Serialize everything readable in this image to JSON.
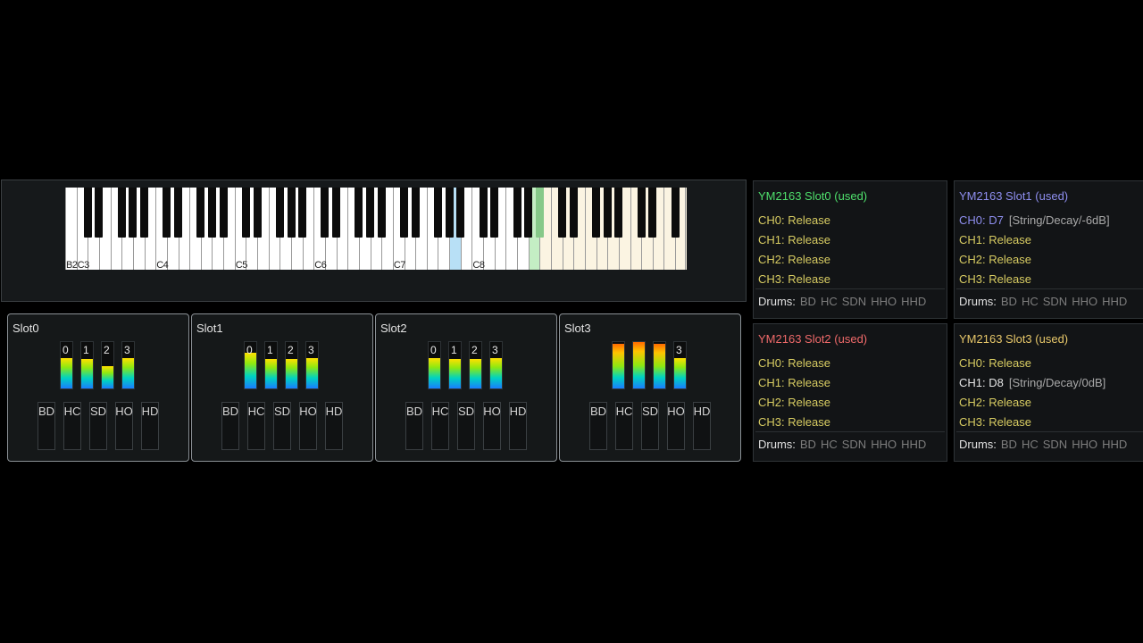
{
  "keyboard": {
    "octave_labels": [
      "B2",
      "C3",
      "C4",
      "C5",
      "C6",
      "C7",
      "C8"
    ]
  },
  "slots": [
    {
      "title": "Slot0",
      "meters": [
        {
          "label": "0",
          "level": 0.66,
          "hot": false
        },
        {
          "label": "1",
          "level": 0.64,
          "hot": false
        },
        {
          "label": "2",
          "level": 0.48,
          "hot": false
        },
        {
          "label": "3",
          "level": 0.66,
          "hot": false
        }
      ],
      "drums": [
        "BD",
        "HC",
        "SD",
        "HO",
        "HD"
      ]
    },
    {
      "title": "Slot1",
      "meters": [
        {
          "label": "0",
          "level": 0.76,
          "hot": false
        },
        {
          "label": "1",
          "level": 0.64,
          "hot": false
        },
        {
          "label": "2",
          "level": 0.64,
          "hot": false
        },
        {
          "label": "3",
          "level": 0.66,
          "hot": false
        }
      ],
      "drums": [
        "BD",
        "HC",
        "SD",
        "HO",
        "HD"
      ]
    },
    {
      "title": "Slot2",
      "meters": [
        {
          "label": "0",
          "level": 0.66,
          "hot": false
        },
        {
          "label": "1",
          "level": 0.64,
          "hot": false
        },
        {
          "label": "2",
          "level": 0.64,
          "hot": false
        },
        {
          "label": "3",
          "level": 0.66,
          "hot": false
        }
      ],
      "drums": [
        "BD",
        "HC",
        "SD",
        "HO",
        "HD"
      ]
    },
    {
      "title": "Slot3",
      "meters": [
        {
          "label": "",
          "level": 0.96,
          "hot": true
        },
        {
          "label": "",
          "level": 1.0,
          "hot": true
        },
        {
          "label": "",
          "level": 0.96,
          "hot": true
        },
        {
          "label": "3",
          "level": 0.66,
          "hot": false
        }
      ],
      "drums": [
        "BD",
        "HC",
        "SD",
        "HO",
        "HD"
      ]
    }
  ],
  "status_panels": [
    {
      "title": "YM2163 Slot0 (used)",
      "title_color": "#4fe06c",
      "channels": [
        {
          "note": "CH0: Release",
          "extra": "",
          "color": "#d8cc62"
        },
        {
          "note": "CH1: Release",
          "extra": "",
          "color": "#d8cc62"
        },
        {
          "note": "CH2: Release",
          "extra": "",
          "color": "#d8cc62"
        },
        {
          "note": "CH3: Release",
          "extra": "",
          "color": "#d8cc62"
        }
      ],
      "drums_label": "Drums:",
      "drums": [
        "BD",
        "HC",
        "SDN",
        "HHO",
        "HHD"
      ]
    },
    {
      "title": "YM2163 Slot1 (used)",
      "title_color": "#8f8ff0",
      "channels": [
        {
          "note": "CH0: D7",
          "extra": "[String/Decay/-6dB]",
          "color": "#8f8ff0"
        },
        {
          "note": "CH1: Release",
          "extra": "",
          "color": "#d8cc62"
        },
        {
          "note": "CH2: Release",
          "extra": "",
          "color": "#d8cc62"
        },
        {
          "note": "CH3: Release",
          "extra": "",
          "color": "#d8cc62"
        }
      ],
      "drums_label": "Drums:",
      "drums": [
        "BD",
        "HC",
        "SDN",
        "HHO",
        "HHD"
      ]
    },
    {
      "title": "YM2163 Slot2 (used)",
      "title_color": "#f06a6a",
      "channels": [
        {
          "note": "CH0: Release",
          "extra": "",
          "color": "#d8cc62"
        },
        {
          "note": "CH1: Release",
          "extra": "",
          "color": "#d8cc62"
        },
        {
          "note": "CH2: Release",
          "extra": "",
          "color": "#d8cc62"
        },
        {
          "note": "CH3: Release",
          "extra": "",
          "color": "#d8cc62"
        }
      ],
      "drums_label": "Drums:",
      "drums": [
        "BD",
        "HC",
        "SDN",
        "HHO",
        "HHD"
      ]
    },
    {
      "title": "YM2163 Slot3 (used)",
      "title_color": "#e8c86a",
      "channels": [
        {
          "note": "CH0: Release",
          "extra": "",
          "color": "#d8cc62"
        },
        {
          "note": "CH1: D8",
          "extra": "[String/Decay/0dB]",
          "color": "#e6e6e6"
        },
        {
          "note": "CH2: Release",
          "extra": "",
          "color": "#d8cc62"
        },
        {
          "note": "CH3: Release",
          "extra": "",
          "color": "#d8cc62"
        }
      ],
      "drums_label": "Drums:",
      "drums": [
        "BD",
        "HC",
        "SDN",
        "HHO",
        "HHD"
      ]
    }
  ]
}
